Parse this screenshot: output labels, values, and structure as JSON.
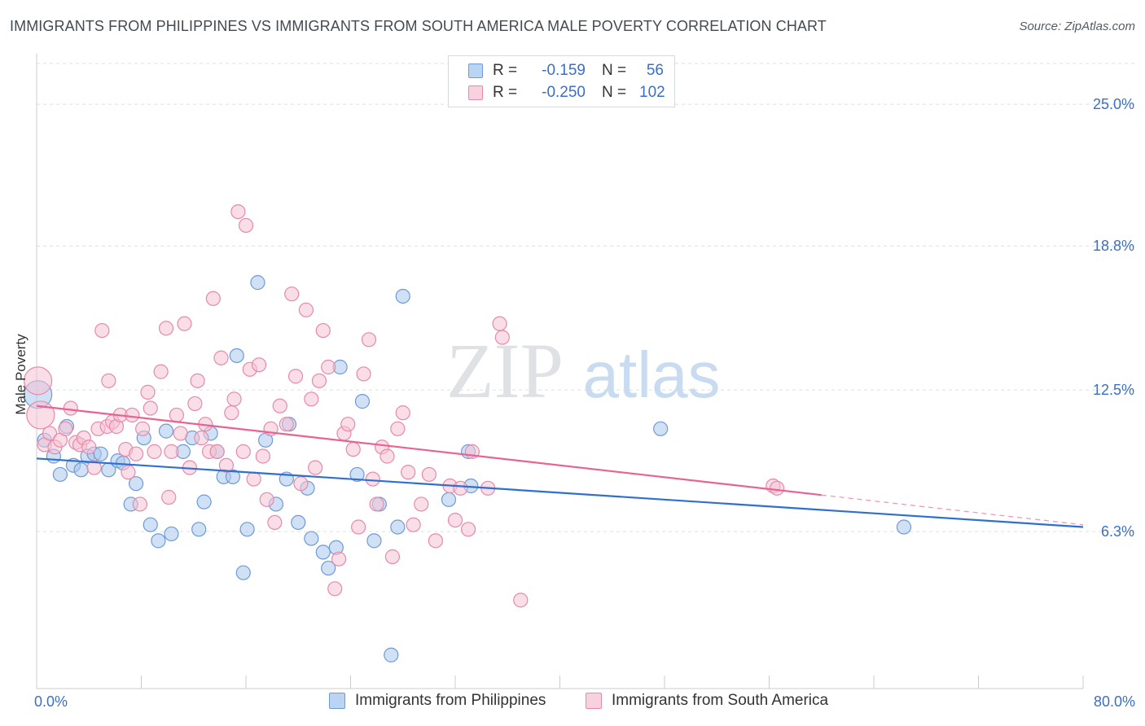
{
  "title": "IMMIGRANTS FROM PHILIPPINES VS IMMIGRANTS FROM SOUTH AMERICA MALE POVERTY CORRELATION CHART",
  "source": "Source: ZipAtlas.com",
  "watermark": {
    "zip": "ZIP",
    "atlas": "atlas"
  },
  "legend": {
    "rows": [
      {
        "r_label": "R =",
        "r_value": "-0.159",
        "n_label": "N =",
        "n_value": "56"
      },
      {
        "r_label": "R =",
        "r_value": "-0.250",
        "n_label": "N =",
        "n_value": "102"
      }
    ]
  },
  "x_labels": {
    "min": "0.0%",
    "max": "80.0%"
  },
  "chart_data": {
    "type": "scatter",
    "xlabel": "",
    "ylabel": "Male Poverty",
    "xlim": [
      0,
      80
    ],
    "ylim": [
      0,
      27
    ],
    "y_ticks": [
      {
        "value": 6.3,
        "label": "6.3%"
      },
      {
        "value": 12.5,
        "label": "12.5%"
      },
      {
        "value": 18.8,
        "label": "18.8%"
      },
      {
        "value": 25.0,
        "label": "25.0%"
      }
    ],
    "grid": "horizontal dashed",
    "legend_position": "top-center",
    "series": [
      {
        "name": "Immigrants from Philippines",
        "color": "#a9c8ee",
        "stroke": "#6f9ad6",
        "trend_color": "#2f6fcf",
        "trend": {
          "x0": 0,
          "y0": 9.5,
          "x1": 80,
          "y1": 6.5,
          "dashed_from": null
        },
        "points": [
          [
            0.1,
            12.3,
            "big"
          ],
          [
            0.6,
            10.3
          ],
          [
            1.3,
            9.6
          ],
          [
            1.8,
            8.8
          ],
          [
            2.3,
            10.9
          ],
          [
            2.8,
            9.2
          ],
          [
            3.4,
            9.0
          ],
          [
            3.9,
            9.6
          ],
          [
            4.4,
            9.7
          ],
          [
            4.9,
            9.7
          ],
          [
            5.5,
            9.0
          ],
          [
            6.2,
            9.4
          ],
          [
            6.6,
            9.3
          ],
          [
            7.2,
            7.5
          ],
          [
            7.6,
            8.4
          ],
          [
            8.2,
            10.4
          ],
          [
            8.7,
            6.6
          ],
          [
            9.3,
            5.9
          ],
          [
            9.9,
            10.7
          ],
          [
            10.3,
            6.2
          ],
          [
            11.2,
            9.8
          ],
          [
            11.9,
            10.4
          ],
          [
            12.4,
            6.4
          ],
          [
            12.8,
            7.6
          ],
          [
            13.3,
            10.6
          ],
          [
            13.8,
            9.8
          ],
          [
            14.3,
            8.7
          ],
          [
            15.0,
            8.7
          ],
          [
            15.3,
            14.0
          ],
          [
            15.8,
            4.5
          ],
          [
            16.1,
            6.4
          ],
          [
            16.9,
            17.2
          ],
          [
            17.5,
            10.3
          ],
          [
            18.3,
            7.5
          ],
          [
            19.1,
            8.6
          ],
          [
            19.3,
            11.0
          ],
          [
            20.0,
            6.7
          ],
          [
            20.7,
            8.2
          ],
          [
            21.0,
            6.0
          ],
          [
            21.9,
            5.4
          ],
          [
            22.3,
            4.7
          ],
          [
            22.9,
            5.6
          ],
          [
            23.2,
            13.5
          ],
          [
            24.5,
            8.8
          ],
          [
            24.9,
            12.0
          ],
          [
            25.8,
            5.9
          ],
          [
            26.2,
            7.5
          ],
          [
            27.1,
            0.9
          ],
          [
            27.6,
            6.5
          ],
          [
            28.0,
            16.6
          ],
          [
            31.5,
            7.7
          ],
          [
            33.0,
            9.8
          ],
          [
            33.2,
            8.3
          ],
          [
            47.7,
            10.8
          ],
          [
            66.3,
            6.5
          ]
        ]
      },
      {
        "name": "Immigrants from South America",
        "color": "#f6c3d3",
        "stroke": "#e68aa8",
        "trend_color": "#e8638f",
        "trend": {
          "x0": 0,
          "y0": 11.8,
          "x1": 80,
          "y1": 6.6,
          "dashed_from": 60
        },
        "points": [
          [
            0.1,
            12.9,
            "big"
          ],
          [
            0.3,
            11.4,
            "big"
          ],
          [
            0.6,
            10.1
          ],
          [
            1.0,
            10.6
          ],
          [
            1.4,
            10.0
          ],
          [
            1.8,
            10.3
          ],
          [
            2.2,
            10.8
          ],
          [
            2.6,
            11.7
          ],
          [
            3.0,
            10.2
          ],
          [
            3.3,
            10.1
          ],
          [
            3.6,
            10.4
          ],
          [
            4.0,
            10.0
          ],
          [
            4.4,
            9.1
          ],
          [
            4.7,
            10.8
          ],
          [
            5.0,
            15.1
          ],
          [
            5.4,
            10.9
          ],
          [
            5.5,
            12.9
          ],
          [
            5.8,
            11.1
          ],
          [
            6.1,
            10.9
          ],
          [
            6.4,
            11.4
          ],
          [
            6.8,
            9.9
          ],
          [
            7.0,
            8.9
          ],
          [
            7.3,
            11.4
          ],
          [
            7.6,
            9.7
          ],
          [
            7.9,
            7.5
          ],
          [
            8.1,
            10.8
          ],
          [
            8.5,
            12.4
          ],
          [
            8.7,
            11.7
          ],
          [
            9.0,
            9.8
          ],
          [
            9.5,
            13.3
          ],
          [
            9.9,
            15.2
          ],
          [
            10.1,
            7.8
          ],
          [
            10.3,
            9.8
          ],
          [
            10.7,
            11.4
          ],
          [
            11.0,
            10.6
          ],
          [
            11.3,
            15.4
          ],
          [
            11.7,
            9.1
          ],
          [
            12.1,
            11.9
          ],
          [
            12.3,
            12.9
          ],
          [
            12.6,
            10.4
          ],
          [
            12.9,
            11.0
          ],
          [
            13.2,
            9.8
          ],
          [
            13.5,
            16.5
          ],
          [
            13.8,
            9.8
          ],
          [
            14.1,
            13.9
          ],
          [
            14.5,
            9.2
          ],
          [
            14.9,
            11.5
          ],
          [
            15.1,
            12.1
          ],
          [
            15.4,
            20.3
          ],
          [
            15.8,
            9.8
          ],
          [
            16.0,
            19.7
          ],
          [
            16.3,
            13.4
          ],
          [
            16.6,
            8.6
          ],
          [
            17.0,
            13.6
          ],
          [
            17.3,
            9.6
          ],
          [
            17.6,
            7.7
          ],
          [
            17.9,
            10.8
          ],
          [
            18.2,
            6.7
          ],
          [
            18.6,
            11.8
          ],
          [
            19.1,
            11.0
          ],
          [
            19.5,
            16.7
          ],
          [
            19.8,
            13.1
          ],
          [
            20.2,
            8.4
          ],
          [
            20.6,
            16.0
          ],
          [
            21.0,
            12.1
          ],
          [
            21.3,
            9.1
          ],
          [
            21.6,
            12.9
          ],
          [
            21.9,
            15.1
          ],
          [
            22.3,
            13.5
          ],
          [
            22.8,
            3.8
          ],
          [
            23.1,
            5.1
          ],
          [
            23.5,
            10.6
          ],
          [
            23.8,
            11.0
          ],
          [
            24.2,
            9.9
          ],
          [
            24.6,
            6.5
          ],
          [
            25.0,
            13.2
          ],
          [
            25.4,
            14.7
          ],
          [
            25.7,
            8.6
          ],
          [
            26.0,
            7.5
          ],
          [
            26.4,
            10.0
          ],
          [
            26.8,
            9.6
          ],
          [
            27.2,
            5.2
          ],
          [
            27.6,
            10.8
          ],
          [
            28.0,
            11.5
          ],
          [
            28.4,
            8.9
          ],
          [
            28.8,
            6.6
          ],
          [
            29.4,
            7.5
          ],
          [
            30.0,
            8.8
          ],
          [
            30.5,
            5.9
          ],
          [
            31.6,
            8.3
          ],
          [
            32.0,
            6.8
          ],
          [
            32.4,
            8.2
          ],
          [
            33.0,
            6.4
          ],
          [
            33.3,
            9.8
          ],
          [
            34.5,
            8.2
          ],
          [
            35.4,
            15.4
          ],
          [
            35.6,
            14.8
          ],
          [
            37.0,
            3.3
          ],
          [
            56.3,
            8.3
          ],
          [
            56.6,
            8.2
          ]
        ]
      }
    ]
  }
}
